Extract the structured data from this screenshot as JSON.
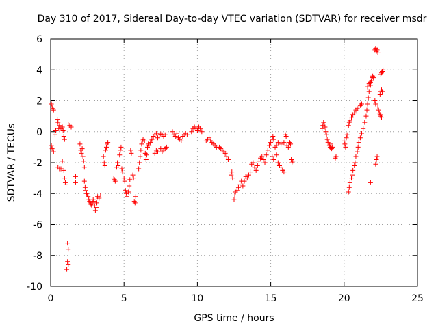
{
  "chart_data": {
    "type": "scatter",
    "title": "Day 310 of 2017, Sidereal Day-to-day VTEC variation (SDTVAR) for receiver msdr",
    "xlabel": "GPS time / hours",
    "ylabel": "SDTVAR / TECUs",
    "xlim": [
      0,
      25
    ],
    "ylim": [
      -10,
      6
    ],
    "xticks": [
      0,
      5,
      10,
      15,
      20,
      25
    ],
    "yticks": [
      -10,
      -8,
      -6,
      -4,
      -2,
      0,
      2,
      4,
      6
    ],
    "grid": true,
    "marker": "+",
    "color": "#ff0000",
    "series": [
      {
        "name": "SDTVAR",
        "points": [
          [
            0.05,
            1.8
          ],
          [
            0.1,
            1.6
          ],
          [
            0.15,
            1.5
          ],
          [
            0.2,
            1.4
          ],
          [
            0.05,
            -0.9
          ],
          [
            0.1,
            -1.1
          ],
          [
            0.2,
            -1.3
          ],
          [
            0.3,
            -0.2
          ],
          [
            0.35,
            0.1
          ],
          [
            0.45,
            0.8
          ],
          [
            0.5,
            0.6
          ],
          [
            0.55,
            0.2
          ],
          [
            0.6,
            0.4
          ],
          [
            0.7,
            0.2
          ],
          [
            0.8,
            0.3
          ],
          [
            0.85,
            0.1
          ],
          [
            0.9,
            -0.3
          ],
          [
            0.95,
            -0.5
          ],
          [
            0.5,
            -2.3
          ],
          [
            0.6,
            -2.4
          ],
          [
            0.7,
            -2.4
          ],
          [
            0.8,
            -1.9
          ],
          [
            0.9,
            -2.5
          ],
          [
            0.95,
            -3.0
          ],
          [
            1.0,
            -3.3
          ],
          [
            1.05,
            -3.4
          ],
          [
            1.15,
            -7.2
          ],
          [
            1.2,
            -7.6
          ],
          [
            1.15,
            -8.4
          ],
          [
            1.2,
            -8.6
          ],
          [
            1.1,
            -8.9
          ],
          [
            1.2,
            0.5
          ],
          [
            1.3,
            0.4
          ],
          [
            1.4,
            0.3
          ],
          [
            1.7,
            -2.9
          ],
          [
            1.7,
            -3.3
          ],
          [
            2.0,
            -0.8
          ],
          [
            2.05,
            -1.2
          ],
          [
            2.1,
            -1.4
          ],
          [
            2.15,
            -1.1
          ],
          [
            2.2,
            -1.6
          ],
          [
            2.25,
            -1.9
          ],
          [
            2.3,
            -2.3
          ],
          [
            2.3,
            -3.2
          ],
          [
            2.35,
            -3.6
          ],
          [
            2.4,
            -3.8
          ],
          [
            2.45,
            -4.0
          ],
          [
            2.5,
            -4.1
          ],
          [
            2.55,
            -4.2
          ],
          [
            2.6,
            -4.4
          ],
          [
            2.65,
            -4.5
          ],
          [
            2.7,
            -4.6
          ],
          [
            2.75,
            -4.7
          ],
          [
            2.8,
            -4.8
          ],
          [
            2.85,
            -4.6
          ],
          [
            2.9,
            -4.4
          ],
          [
            2.95,
            -4.5
          ],
          [
            3.0,
            -4.8
          ],
          [
            3.05,
            -5.1
          ],
          [
            3.1,
            -4.9
          ],
          [
            3.15,
            -4.6
          ],
          [
            3.2,
            -4.2
          ],
          [
            3.3,
            -4.3
          ],
          [
            3.4,
            -4.1
          ],
          [
            3.6,
            -1.6
          ],
          [
            3.65,
            -2.0
          ],
          [
            3.7,
            -2.2
          ],
          [
            3.75,
            -1.2
          ],
          [
            3.8,
            -1.0
          ],
          [
            3.85,
            -0.8
          ],
          [
            3.9,
            -0.7
          ],
          [
            4.3,
            -3.0
          ],
          [
            4.35,
            -3.1
          ],
          [
            4.4,
            -3.2
          ],
          [
            4.5,
            -2.3
          ],
          [
            4.55,
            -2.0
          ],
          [
            4.6,
            -2.2
          ],
          [
            4.7,
            -1.5
          ],
          [
            4.75,
            -1.2
          ],
          [
            4.8,
            -1.0
          ],
          [
            4.85,
            -2.4
          ],
          [
            4.9,
            -2.6
          ],
          [
            5.0,
            -3.0
          ],
          [
            5.05,
            -3.2
          ],
          [
            5.1,
            -3.8
          ],
          [
            5.15,
            -4.0
          ],
          [
            5.2,
            -4.2
          ],
          [
            5.3,
            -3.9
          ],
          [
            5.35,
            -3.5
          ],
          [
            5.4,
            -3.1
          ],
          [
            5.45,
            -1.2
          ],
          [
            5.5,
            -1.4
          ],
          [
            5.6,
            -2.8
          ],
          [
            5.65,
            -3.0
          ],
          [
            5.7,
            -4.5
          ],
          [
            5.75,
            -4.6
          ],
          [
            5.8,
            -4.2
          ],
          [
            6.0,
            -2.4
          ],
          [
            6.05,
            -2.0
          ],
          [
            6.1,
            -1.6
          ],
          [
            6.15,
            -1.2
          ],
          [
            6.2,
            -0.8
          ],
          [
            6.25,
            -0.6
          ],
          [
            6.3,
            -0.5
          ],
          [
            6.4,
            -0.6
          ],
          [
            6.45,
            -1.4
          ],
          [
            6.5,
            -1.8
          ],
          [
            6.55,
            -1.5
          ],
          [
            6.6,
            -1.0
          ],
          [
            6.65,
            -0.8
          ],
          [
            6.7,
            -0.9
          ],
          [
            6.8,
            -0.7
          ],
          [
            6.85,
            -0.6
          ],
          [
            6.9,
            -0.5
          ],
          [
            7.0,
            -0.3
          ],
          [
            7.1,
            -0.2
          ],
          [
            7.2,
            -0.1
          ],
          [
            7.3,
            -0.4
          ],
          [
            7.4,
            -0.2
          ],
          [
            7.5,
            -0.15
          ],
          [
            7.6,
            -0.2
          ],
          [
            7.7,
            -0.3
          ],
          [
            7.8,
            -0.2
          ],
          [
            7.1,
            -1.4
          ],
          [
            7.2,
            -1.2
          ],
          [
            7.3,
            -1.3
          ],
          [
            7.5,
            -1.1
          ],
          [
            7.6,
            -1.3
          ],
          [
            7.7,
            -1.2
          ],
          [
            7.8,
            -1.1
          ],
          [
            7.9,
            -1.0
          ],
          [
            8.3,
            0.0
          ],
          [
            8.4,
            -0.2
          ],
          [
            8.5,
            -0.3
          ],
          [
            8.6,
            -0.1
          ],
          [
            8.7,
            -0.4
          ],
          [
            8.8,
            -0.5
          ],
          [
            8.9,
            -0.6
          ],
          [
            9.0,
            -0.3
          ],
          [
            9.1,
            -0.2
          ],
          [
            9.2,
            -0.1
          ],
          [
            9.3,
            -0.2
          ],
          [
            9.6,
            0.0
          ],
          [
            9.7,
            0.2
          ],
          [
            9.8,
            0.3
          ],
          [
            9.9,
            0.2
          ],
          [
            10.0,
            0.1
          ],
          [
            10.1,
            0.3
          ],
          [
            10.2,
            0.2
          ],
          [
            10.3,
            0.0
          ],
          [
            10.6,
            -0.6
          ],
          [
            10.7,
            -0.5
          ],
          [
            10.8,
            -0.4
          ],
          [
            10.9,
            -0.6
          ],
          [
            11.0,
            -0.7
          ],
          [
            11.1,
            -0.8
          ],
          [
            11.2,
            -0.9
          ],
          [
            11.3,
            -1.0
          ],
          [
            11.5,
            -1.0
          ],
          [
            11.6,
            -1.1
          ],
          [
            11.7,
            -1.2
          ],
          [
            11.8,
            -1.3
          ],
          [
            11.9,
            -1.4
          ],
          [
            12.0,
            -1.6
          ],
          [
            12.1,
            -1.8
          ],
          [
            12.3,
            -2.8
          ],
          [
            12.35,
            -2.6
          ],
          [
            12.4,
            -3.0
          ],
          [
            12.5,
            -4.4
          ],
          [
            12.55,
            -4.1
          ],
          [
            12.6,
            -3.9
          ],
          [
            12.7,
            -3.8
          ],
          [
            12.8,
            -3.6
          ],
          [
            12.9,
            -3.4
          ],
          [
            13.0,
            -3.2
          ],
          [
            13.1,
            -3.5
          ],
          [
            13.2,
            -3.2
          ],
          [
            13.3,
            -2.9
          ],
          [
            13.4,
            -3.0
          ],
          [
            13.5,
            -2.8
          ],
          [
            13.6,
            -2.6
          ],
          [
            13.7,
            -2.1
          ],
          [
            13.8,
            -2.0
          ],
          [
            13.9,
            -2.3
          ],
          [
            14.0,
            -2.5
          ],
          [
            14.1,
            -2.2
          ],
          [
            14.2,
            -1.9
          ],
          [
            14.3,
            -1.7
          ],
          [
            14.4,
            -1.6
          ],
          [
            14.5,
            -1.8
          ],
          [
            14.6,
            -2.0
          ],
          [
            14.7,
            -1.5
          ],
          [
            14.8,
            -1.2
          ],
          [
            14.9,
            -0.9
          ],
          [
            15.0,
            -0.7
          ],
          [
            15.1,
            -0.5
          ],
          [
            15.15,
            -0.3
          ],
          [
            15.2,
            -0.5
          ],
          [
            15.3,
            -1.0
          ],
          [
            15.4,
            -1.5
          ],
          [
            15.5,
            -2.0
          ],
          [
            15.6,
            -2.2
          ],
          [
            15.7,
            -2.3
          ],
          [
            15.8,
            -2.5
          ],
          [
            15.9,
            -2.6
          ],
          [
            15.1,
            -1.6
          ],
          [
            15.2,
            -1.8
          ],
          [
            15.4,
            -0.9
          ],
          [
            15.5,
            -0.7
          ],
          [
            15.7,
            -0.8
          ],
          [
            15.9,
            -0.7
          ],
          [
            16.0,
            -0.2
          ],
          [
            16.05,
            -0.3
          ],
          [
            16.1,
            -0.9
          ],
          [
            16.2,
            -1.0
          ],
          [
            16.3,
            -0.7
          ],
          [
            16.35,
            -0.8
          ],
          [
            16.4,
            -1.8
          ],
          [
            16.45,
            -2.0
          ],
          [
            16.5,
            -1.9
          ],
          [
            18.5,
            0.2
          ],
          [
            18.55,
            0.4
          ],
          [
            18.6,
            0.6
          ],
          [
            18.65,
            0.5
          ],
          [
            18.7,
            0.3
          ],
          [
            18.75,
            0.0
          ],
          [
            18.8,
            -0.2
          ],
          [
            18.85,
            -0.5
          ],
          [
            18.9,
            -0.7
          ],
          [
            19.0,
            -0.9
          ],
          [
            19.05,
            -1.0
          ],
          [
            19.1,
            -0.8
          ],
          [
            19.15,
            -1.1
          ],
          [
            19.2,
            -1.0
          ],
          [
            19.4,
            -1.7
          ],
          [
            19.45,
            -1.6
          ],
          [
            20.0,
            -0.6
          ],
          [
            20.05,
            -0.8
          ],
          [
            20.1,
            -1.0
          ],
          [
            20.15,
            -0.4
          ],
          [
            20.2,
            -0.2
          ],
          [
            20.3,
            0.4
          ],
          [
            20.35,
            0.6
          ],
          [
            20.4,
            0.7
          ],
          [
            20.5,
            0.9
          ],
          [
            20.6,
            1.1
          ],
          [
            20.7,
            1.2
          ],
          [
            20.8,
            1.4
          ],
          [
            20.9,
            1.5
          ],
          [
            21.0,
            1.6
          ],
          [
            21.1,
            1.7
          ],
          [
            21.2,
            1.8
          ],
          [
            20.3,
            -3.9
          ],
          [
            20.35,
            -3.6
          ],
          [
            20.4,
            -3.3
          ],
          [
            20.5,
            -3.0
          ],
          [
            20.55,
            -2.8
          ],
          [
            20.6,
            -2.5
          ],
          [
            20.7,
            -2.2
          ],
          [
            20.75,
            -2.0
          ],
          [
            20.8,
            -1.6
          ],
          [
            20.9,
            -1.3
          ],
          [
            20.95,
            -1.0
          ],
          [
            21.0,
            -0.7
          ],
          [
            21.1,
            -0.4
          ],
          [
            21.2,
            -0.1
          ],
          [
            21.3,
            0.2
          ],
          [
            21.4,
            0.6
          ],
          [
            21.5,
            1.0
          ],
          [
            21.55,
            1.4
          ],
          [
            21.6,
            1.8
          ],
          [
            21.65,
            2.2
          ],
          [
            21.7,
            2.6
          ],
          [
            21.8,
            3.0
          ],
          [
            21.85,
            3.3
          ],
          [
            21.9,
            3.5
          ],
          [
            21.95,
            3.6
          ],
          [
            22.0,
            3.5
          ],
          [
            21.6,
            2.9
          ],
          [
            21.7,
            3.1
          ],
          [
            21.8,
            3.2
          ],
          [
            21.8,
            -3.3
          ],
          [
            22.1,
            2.0
          ],
          [
            22.15,
            1.8
          ],
          [
            22.15,
            -2.1
          ],
          [
            22.2,
            -1.8
          ],
          [
            22.25,
            -1.6
          ],
          [
            22.1,
            5.3
          ],
          [
            22.15,
            5.4
          ],
          [
            22.2,
            5.2
          ],
          [
            22.25,
            5.3
          ],
          [
            22.3,
            5.1
          ],
          [
            22.3,
            1.6
          ],
          [
            22.35,
            1.4
          ],
          [
            22.4,
            1.2
          ],
          [
            22.45,
            1.1
          ],
          [
            22.5,
            1.0
          ],
          [
            22.55,
            0.9
          ],
          [
            22.45,
            2.4
          ],
          [
            22.5,
            2.6
          ],
          [
            22.55,
            2.7
          ],
          [
            22.6,
            2.6
          ],
          [
            22.5,
            3.7
          ],
          [
            22.55,
            3.8
          ],
          [
            22.6,
            3.9
          ],
          [
            22.65,
            4.0
          ]
        ]
      }
    ]
  }
}
